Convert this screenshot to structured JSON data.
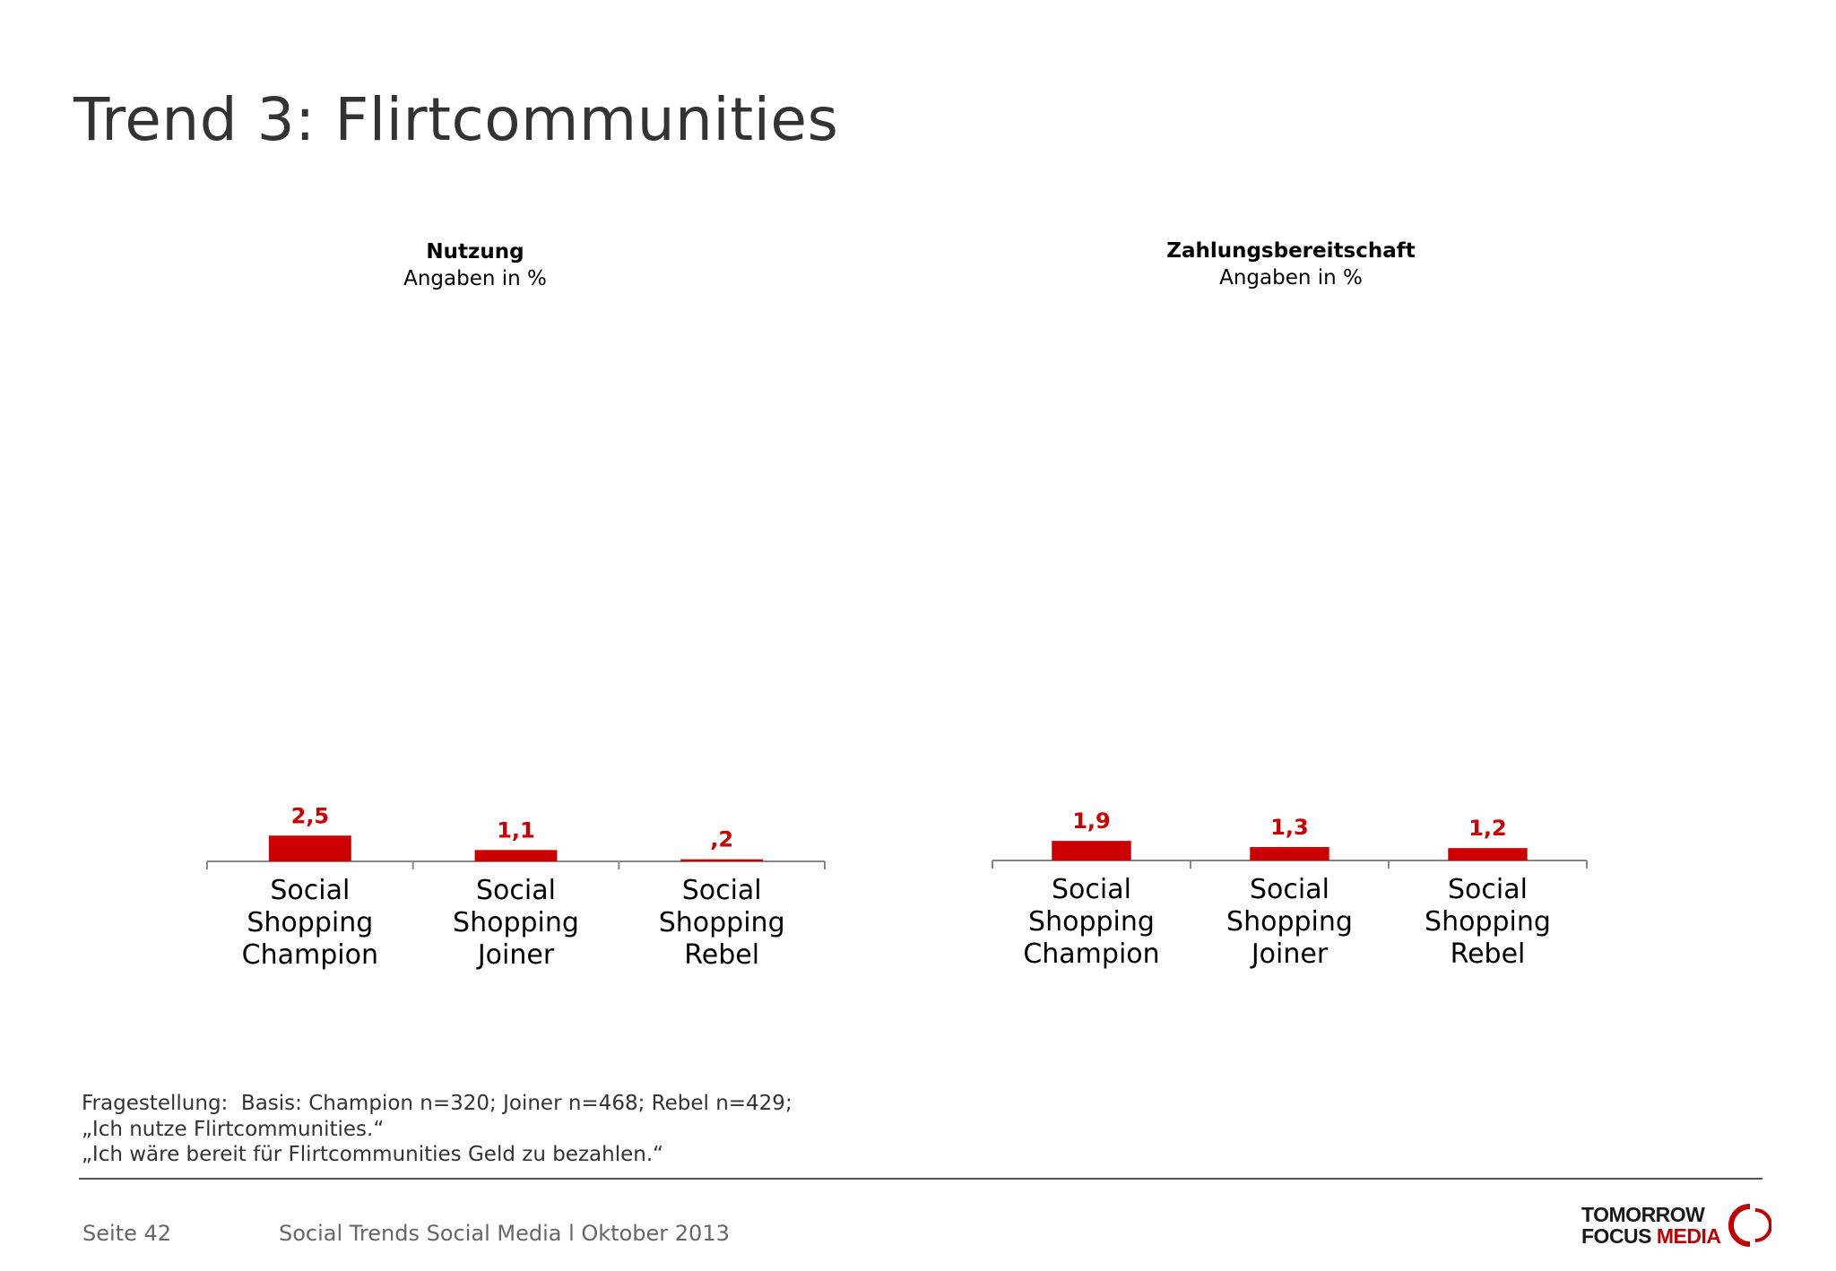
{
  "slide": {
    "title": "Trend 3: Flirtcommunities"
  },
  "charts": {
    "left": {
      "title": "Nutzung",
      "subtitle": "Angaben in %"
    },
    "right": {
      "title": "Zahlungsbereitschaft",
      "subtitle": "Angaben in %"
    }
  },
  "chart_data": [
    {
      "type": "bar",
      "title": "Nutzung",
      "subtitle": "Angaben in %",
      "categories": [
        "Social Shopping Champion",
        "Social Shopping Joiner",
        "Social Shopping Rebel"
      ],
      "category_lines": [
        [
          "Social",
          "Shopping",
          "Champion"
        ],
        [
          "Social",
          "Shopping",
          "Joiner"
        ],
        [
          "Social",
          "Shopping",
          "Rebel"
        ]
      ],
      "values": [
        2.5,
        1.1,
        0.2
      ],
      "value_labels": [
        "2,5",
        "1,1",
        ",2"
      ],
      "ylim": [
        0,
        40
      ],
      "grid": false,
      "color": "#cc0000"
    },
    {
      "type": "bar",
      "title": "Zahlungsbereitschaft",
      "subtitle": "Angaben in %",
      "categories": [
        "Social Shopping Champion",
        "Social Shopping Joiner",
        "Social Shopping Rebel"
      ],
      "category_lines": [
        [
          "Social",
          "Shopping",
          "Champion"
        ],
        [
          "Social",
          "Shopping",
          "Joiner"
        ],
        [
          "Social",
          "Shopping",
          "Rebel"
        ]
      ],
      "values": [
        1.9,
        1.3,
        1.2
      ],
      "value_labels": [
        "1,9",
        "1,3",
        "1,2"
      ],
      "ylim": [
        0,
        40
      ],
      "grid": false,
      "color": "#cc0000"
    }
  ],
  "footnote": {
    "line1": "Fragestellung:  Basis: Champion n=320; Joiner n=468; Rebel n=429;",
    "line2": "„Ich nutze Flirtcommunities.“",
    "line3": "„Ich wäre bereit für Flirtcommunities Geld zu bezahlen.“"
  },
  "footer": {
    "page": "Seite 42",
    "doc_title": "Social Trends Social Media l Oktober 2013"
  },
  "logo": {
    "line1": "TOMORROW",
    "line2_a": "FOCUS",
    "line2_b": "MEDIA"
  },
  "colors": {
    "accent": "#cc0000",
    "text": "#333333"
  }
}
